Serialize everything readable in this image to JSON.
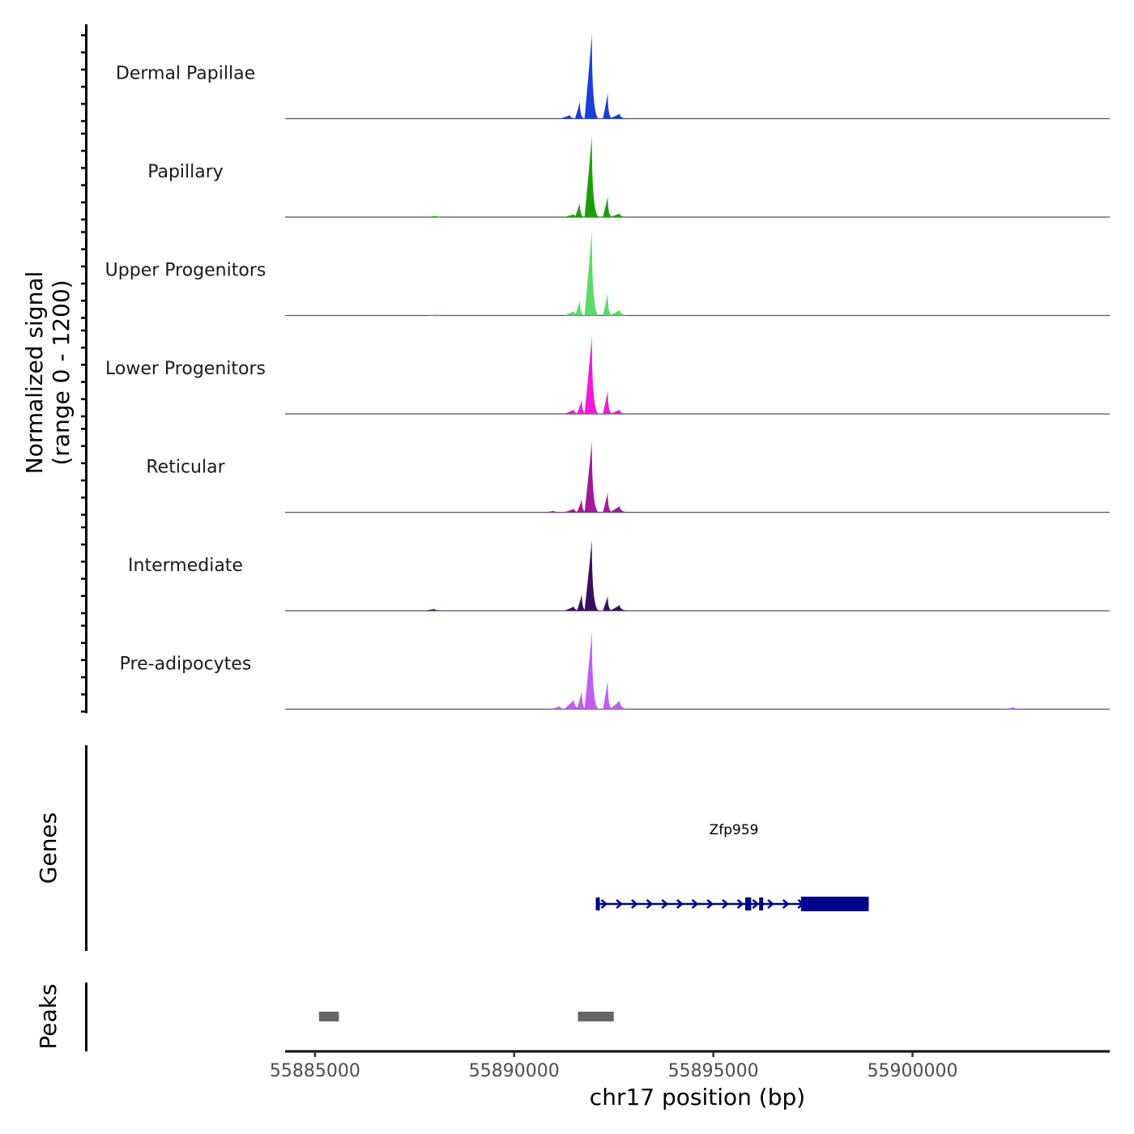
{
  "chart_data": {
    "type": "area",
    "chromosome": "chr17",
    "xlabel": "chr17 position (bp)",
    "xlim": [
      55884250,
      55904950
    ],
    "x_ticks": [
      55885000,
      55890000,
      55895000,
      55900000
    ],
    "x_tick_labels": [
      "55885000",
      "55890000",
      "55895000",
      "55900000"
    ],
    "ylabel_line1": "Normalized signal",
    "ylabel_line2": "(range 0 - 1200)",
    "ylim": [
      0,
      1200
    ],
    "series": [
      {
        "name": "Dermal Papillae",
        "color": "#1a3fd6",
        "points": [
          [
            55891400,
            50
          ],
          [
            55891650,
            240
          ],
          [
            55891950,
            1200
          ],
          [
            55892350,
            360
          ],
          [
            55892650,
            70
          ]
        ]
      },
      {
        "name": "Papillary",
        "color": "#1b9e0a",
        "points": [
          [
            55888050,
            15
          ],
          [
            55891500,
            40
          ],
          [
            55891650,
            200
          ],
          [
            55891950,
            1150
          ],
          [
            55892350,
            290
          ],
          [
            55892650,
            50
          ]
        ]
      },
      {
        "name": "Upper Progenitors",
        "color": "#5ed86a",
        "points": [
          [
            55888050,
            15
          ],
          [
            55891500,
            60
          ],
          [
            55891650,
            210
          ],
          [
            55891950,
            1200
          ],
          [
            55892350,
            310
          ],
          [
            55892650,
            80
          ]
        ]
      },
      {
        "name": "Lower Progenitors",
        "color": "#ee1ad6",
        "points": [
          [
            55891500,
            60
          ],
          [
            55891700,
            200
          ],
          [
            55891950,
            1100
          ],
          [
            55892350,
            330
          ],
          [
            55892650,
            60
          ]
        ]
      },
      {
        "name": "Reticular",
        "color": "#a3189b",
        "points": [
          [
            55891000,
            20
          ],
          [
            55891500,
            50
          ],
          [
            55891700,
            180
          ],
          [
            55891950,
            1000
          ],
          [
            55892350,
            280
          ],
          [
            55892650,
            90
          ]
        ]
      },
      {
        "name": "Intermediate",
        "color": "#3a0f5e",
        "points": [
          [
            55888000,
            25
          ],
          [
            55891500,
            60
          ],
          [
            55891700,
            230
          ],
          [
            55891950,
            1000
          ],
          [
            55892350,
            210
          ],
          [
            55892650,
            80
          ]
        ]
      },
      {
        "name": "Pre-adipocytes",
        "color": "#c05ef0",
        "points": [
          [
            55891150,
            40
          ],
          [
            55891500,
            130
          ],
          [
            55891700,
            250
          ],
          [
            55891950,
            1100
          ],
          [
            55892350,
            400
          ],
          [
            55892650,
            120
          ],
          [
            55902550,
            25
          ]
        ]
      }
    ],
    "genes": {
      "title": "Genes",
      "items": [
        {
          "name": "Zfp959",
          "strand": "+",
          "start": 55892050,
          "end": 55898900,
          "exons": [
            [
              55892050,
              55892150
            ],
            [
              55895800,
              55895950
            ],
            [
              55896150,
              55896250
            ],
            [
              55897200,
              55898900
            ]
          ],
          "color": "#00008b"
        }
      ]
    },
    "peaks": {
      "title": "Peaks",
      "color": "#666666",
      "regions": [
        [
          55885100,
          55885600
        ],
        [
          55891600,
          55892500
        ]
      ]
    }
  }
}
